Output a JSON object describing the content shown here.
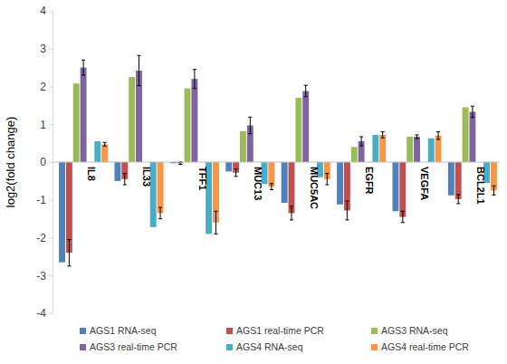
{
  "chart_data": {
    "type": "bar",
    "y_label": "log2(fold change)",
    "categories": [
      "IL8",
      "IL33",
      "TFF1",
      "MUC13",
      "MUC5AC",
      "EGFR",
      "VEGFA",
      "BCL2L1"
    ],
    "series": [
      {
        "name": "AGS1 RNA-seq",
        "color": "#4f81bd",
        "values": [
          -2.65,
          -0.5,
          -0.03,
          -0.25,
          -1.08,
          -1.12,
          -1.3,
          -0.88
        ]
      },
      {
        "name": "AGS1 real-time PCR",
        "color": "#c0504d",
        "values": [
          -2.4,
          -0.45,
          -0.03,
          -0.28,
          -1.35,
          -1.28,
          -1.45,
          -0.98
        ],
        "errors": [
          0.35,
          0.15,
          0.03,
          0.1,
          0.18,
          0.25,
          0.15,
          0.12
        ]
      },
      {
        "name": "AGS3 RNA-seq",
        "color": "#9bbb59",
        "values": [
          2.08,
          2.25,
          1.95,
          0.82,
          1.7,
          0.4,
          0.67,
          1.45
        ]
      },
      {
        "name": "AGS3 real-time PCR",
        "color": "#8064a2",
        "values": [
          2.5,
          2.42,
          2.2,
          0.97,
          1.88,
          0.55,
          0.67,
          1.33
        ],
        "errors": [
          0.2,
          0.4,
          0.25,
          0.22,
          0.15,
          0.12,
          0.05,
          0.15
        ]
      },
      {
        "name": "AGS4 RNA-seq",
        "color": "#4bacc6",
        "values": [
          0.55,
          -1.72,
          -1.9,
          -0.58,
          -0.4,
          0.72,
          0.63,
          -0.55
        ]
      },
      {
        "name": "AGS4 real-time PCR",
        "color": "#f79646",
        "values": [
          0.47,
          -1.35,
          -1.6,
          -0.65,
          -0.45,
          0.72,
          0.7,
          -0.75
        ],
        "errors": [
          0.05,
          0.15,
          0.3,
          0.08,
          0.15,
          0.08,
          0.1,
          0.12
        ]
      }
    ],
    "ylim": [
      -4,
      4
    ],
    "yticks": [
      -4,
      -3,
      -2,
      -1,
      0,
      1,
      2,
      3,
      4
    ],
    "grid": false,
    "legend": "bottom"
  }
}
